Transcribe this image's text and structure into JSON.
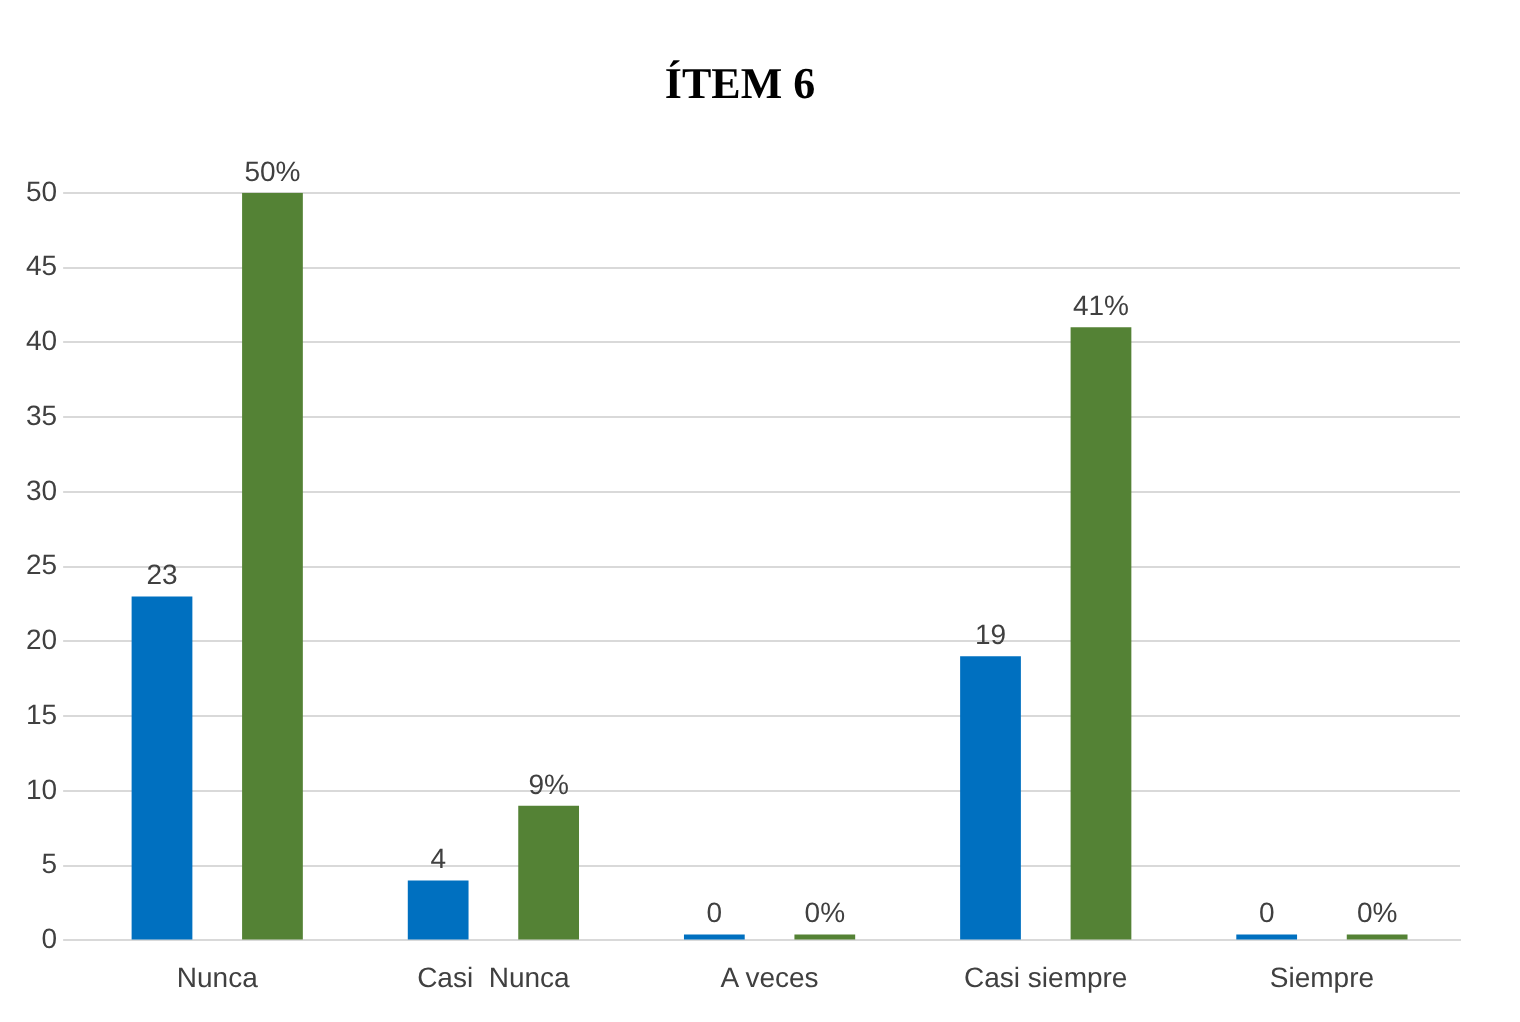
{
  "chart_data": {
    "type": "bar",
    "title": "ÍTEM 6",
    "categories": [
      "Nunca",
      "Casi  Nunca",
      "A veces",
      "Casi siempre",
      "Siempre"
    ],
    "series": [
      {
        "color": "#0070c0",
        "values": [
          23,
          4,
          0,
          19,
          0
        ],
        "value_labels": [
          "23",
          "4",
          "0",
          "19",
          "0"
        ]
      },
      {
        "color": "#548235",
        "values": [
          50,
          9,
          0,
          41,
          0
        ],
        "value_labels": [
          "50%",
          "9%",
          "0%",
          "41%",
          "0%"
        ]
      }
    ],
    "ylim": [
      0,
      50
    ],
    "yticks": [
      0,
      5,
      10,
      15,
      20,
      25,
      30,
      35,
      40,
      45,
      50
    ],
    "grid": "y",
    "legend": false
  }
}
